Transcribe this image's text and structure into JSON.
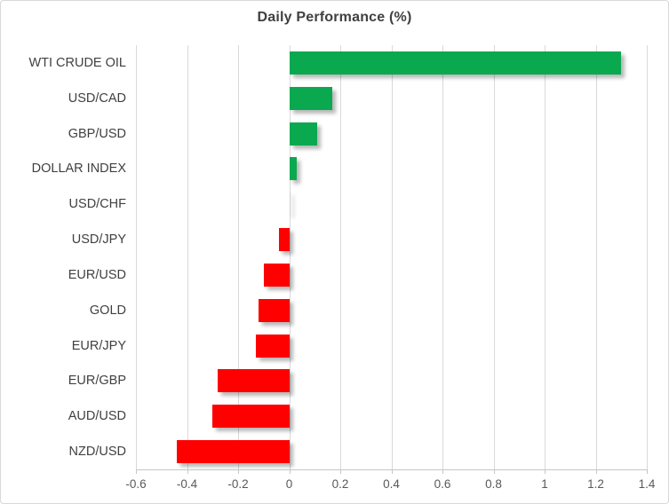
{
  "title": "Daily Performance (%)",
  "colors": {
    "positive_bar": "#0ba94f",
    "negative_bar": "#ff0000",
    "gridline": "#d9d9d9",
    "axis_line": "#c6c6c6",
    "title_text": "#404040",
    "category_text": "#404040",
    "tick_text": "#595959"
  },
  "chart_data": {
    "type": "bar",
    "orientation": "horizontal",
    "title": "Daily Performance (%)",
    "categories": [
      "WTI CRUDE OIL",
      "USD/CAD",
      "GBP/USD",
      "DOLLAR INDEX",
      "USD/CHF",
      "USD/JPY",
      "EUR/USD",
      "GOLD",
      "EUR/JPY",
      "EUR/GBP",
      "AUD/USD",
      "NZD/USD"
    ],
    "values": [
      1.3,
      0.17,
      0.11,
      0.03,
      0.0,
      -0.04,
      -0.1,
      -0.12,
      -0.13,
      -0.28,
      -0.3,
      -0.44
    ],
    "xlabel": "",
    "ylabel": "",
    "xlim": [
      -0.6,
      1.4
    ],
    "xticks": [
      -0.6,
      -0.4,
      -0.2,
      0,
      0.2,
      0.4,
      0.6,
      0.8,
      1,
      1.2,
      1.4
    ],
    "xtick_labels": [
      "-0.6",
      "-0.4",
      "-0.2",
      "0",
      "0.2",
      "0.4",
      "0.6",
      "0.8",
      "1",
      "1.2",
      "1.4"
    ],
    "grid": true,
    "legend": false,
    "bar_color_positive": "#0ba94f",
    "bar_color_negative": "#ff0000"
  }
}
